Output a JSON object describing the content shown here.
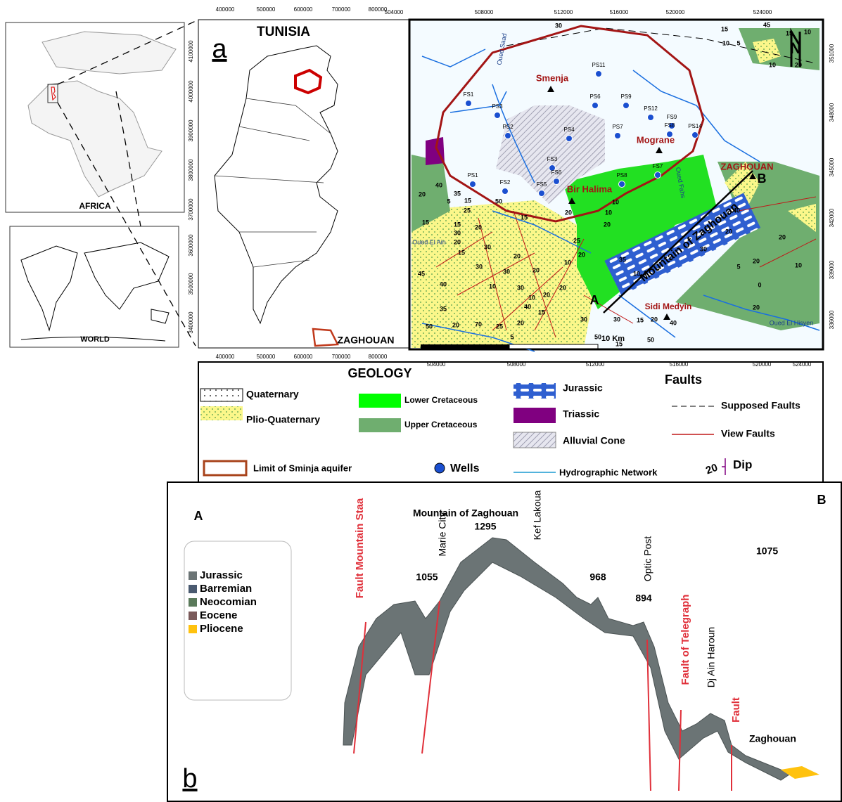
{
  "insets": {
    "africa": "AFRICA",
    "world": "WORLD"
  },
  "panel_a": {
    "label": "a",
    "title": "TUNISIA",
    "zaghouan": "ZAGHOUAN",
    "x_ticks": [
      400000,
      500000,
      600000,
      700000,
      800000
    ],
    "y_ticks": [
      3400000,
      3500000,
      3600000,
      3700000,
      3800000,
      3900000,
      4000000,
      4100000
    ]
  },
  "map": {
    "x_ticks": [
      504000,
      508000,
      512000,
      516000,
      520000,
      524000
    ],
    "y_ticks": [
      336000,
      339000,
      342000,
      345000,
      348000,
      351000
    ],
    "places": [
      "Smenja",
      "Mograne",
      "Bir Halima",
      "ZAGHOUAN",
      "Sidi Medyin",
      "Mountain of Zaghouan",
      "A",
      "B"
    ],
    "rivers": [
      "Oued Saad",
      "Oued El Ain",
      "Oued El Hisyen",
      "Oued Fahs"
    ],
    "wells": [
      "PS11",
      "FS1",
      "PS3",
      "PS6",
      "PS9",
      "PS12",
      "FS9",
      "FS8",
      "PS14",
      "PS2",
      "PS4",
      "PS7",
      "FS3",
      "FS6",
      "PS1",
      "FS2",
      "FS5",
      "PS8",
      "FS7"
    ],
    "dips": [
      30,
      15,
      45,
      15,
      10,
      10,
      5,
      10,
      20,
      40,
      20,
      35,
      5,
      15,
      25,
      50,
      15,
      15,
      30,
      20,
      20,
      15,
      30,
      30,
      20,
      30,
      30,
      10,
      45,
      40,
      35,
      50,
      20,
      70,
      25,
      20,
      40,
      15,
      20,
      10,
      5,
      25,
      20,
      10,
      20,
      15,
      20,
      20,
      10,
      35,
      10,
      30,
      15,
      20,
      40,
      50,
      15,
      50,
      40,
      20,
      20,
      5,
      20,
      10,
      0,
      20,
      10,
      20,
      30,
      30
    ],
    "scale": "10 Km",
    "north": "N"
  },
  "legend": {
    "title": "GEOLOGY",
    "units": [
      "Quaternary",
      "Plio-Quaternary",
      "Lower Cretaceous",
      "Upper Cretaceous",
      "Jurassic",
      "Triassic",
      "Alluvial Cone"
    ],
    "faults_title": "Faults",
    "faults": [
      "Supposed Faults",
      "View Faults"
    ],
    "aquifer": "Limit of Sminja aquifer",
    "wells": "Wells",
    "network": "Hydrographic Network",
    "dip_example": 20,
    "dip": "Dip"
  },
  "section": {
    "label": "b",
    "end_a": "A",
    "end_b": "B",
    "names": [
      "Mountain of Zaghouan",
      "Marie City",
      "Kef Lakoua",
      "Optic Post",
      "Dj Ain Haroun",
      "Zaghouan"
    ],
    "elevations": [
      1295,
      1055,
      1075,
      968,
      894
    ],
    "faults": [
      "Fault Mountain Staa",
      "Fault of Telegraph",
      "Fault"
    ],
    "legend": [
      "Jurassic",
      "Barremian",
      "Neocomian",
      "Eocene",
      "Pliocene"
    ]
  }
}
